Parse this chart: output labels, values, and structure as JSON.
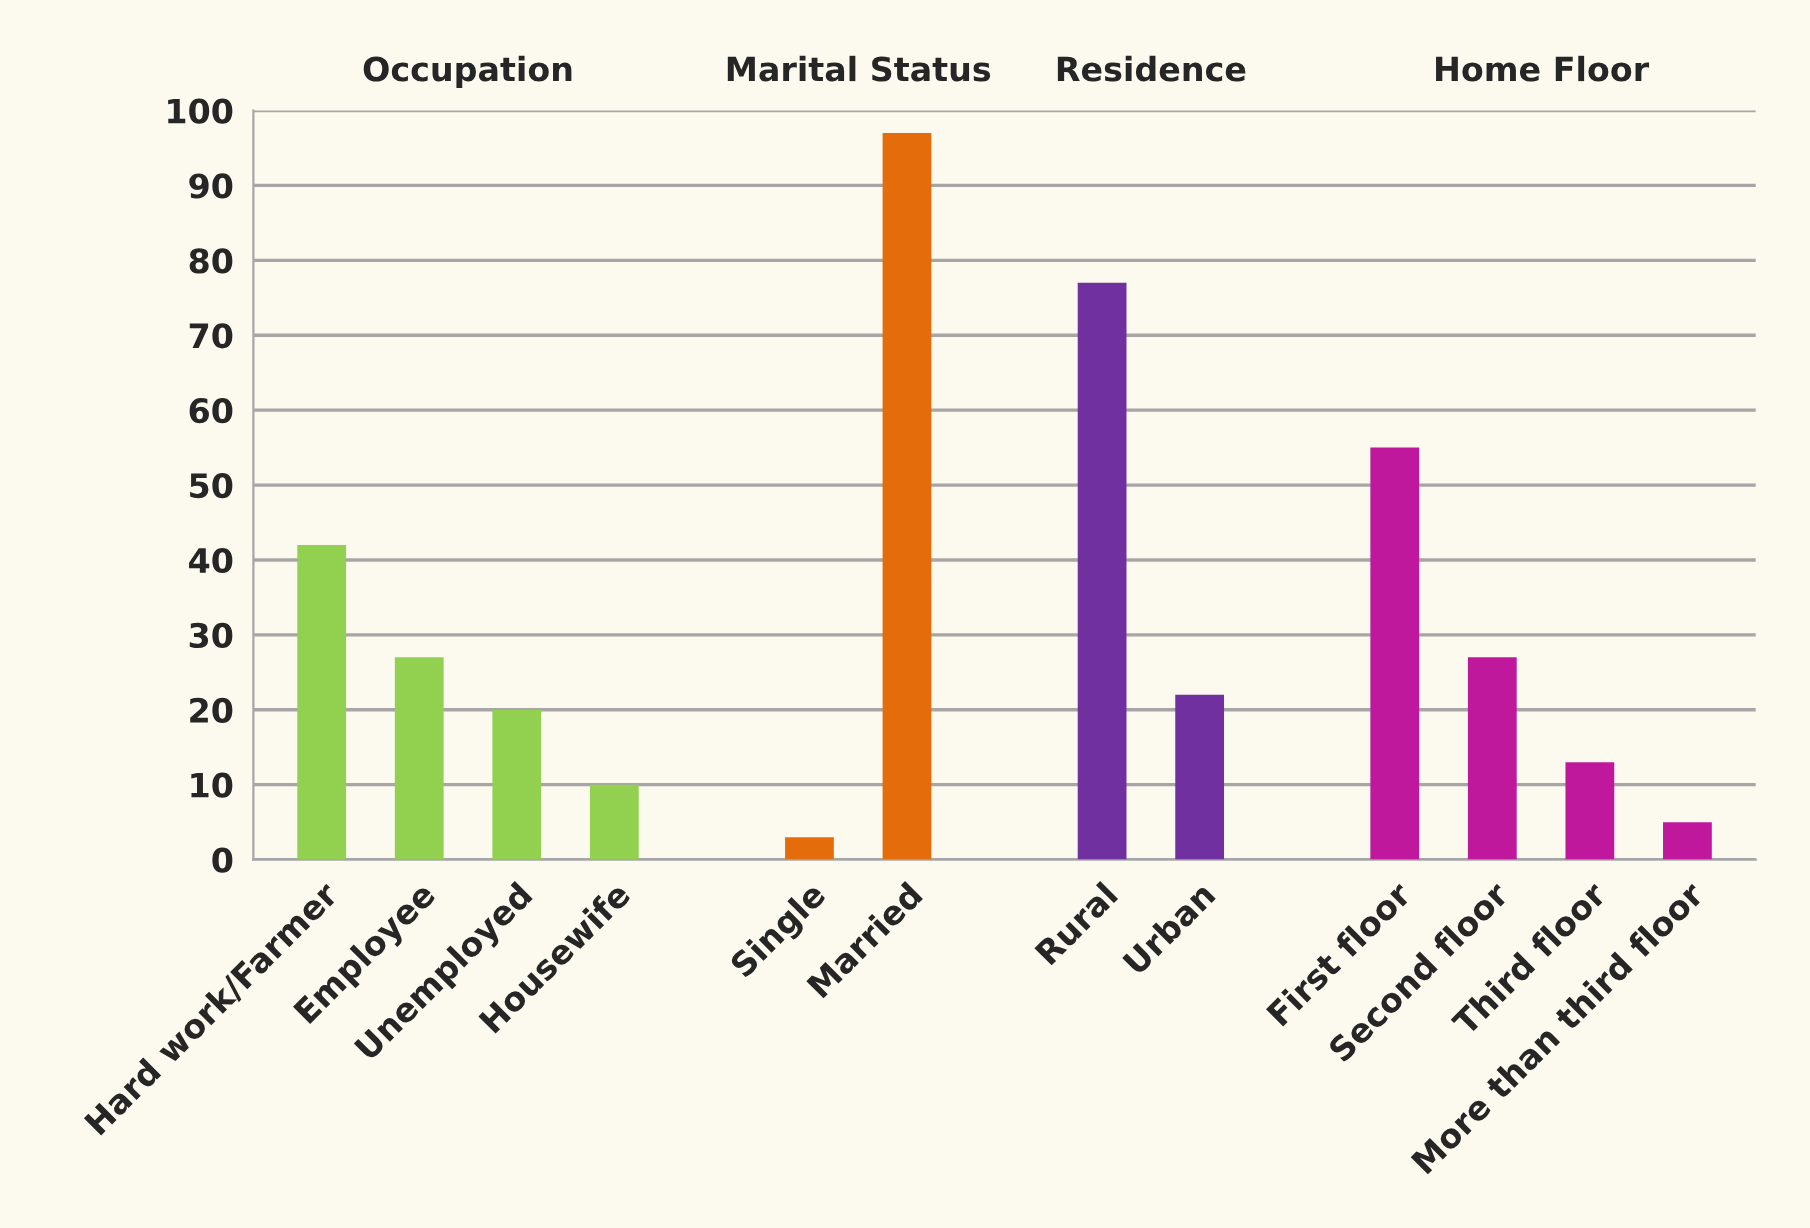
{
  "chart_data": {
    "type": "bar",
    "categories": [
      "Hard work/Farmer",
      "Employee",
      "Unemployed",
      "Housewife",
      null,
      "Single",
      "Married",
      null,
      "Rural",
      "Urban",
      null,
      "First floor",
      "Second floor",
      "Third floor",
      "More than third floor"
    ],
    "values": [
      42,
      27,
      20,
      10,
      null,
      3,
      97,
      null,
      77,
      22,
      null,
      55,
      27,
      13,
      5
    ],
    "colors": [
      "#92d050",
      "#92d050",
      "#92d050",
      "#92d050",
      "#92d050",
      "#e46c0a",
      "#e46c0a",
      "#7030a0",
      "#7030a0",
      "#7030a0",
      "#c0189c",
      "#c0189c",
      "#c0189c",
      "#c0189c",
      "#c0189c"
    ],
    "annotations": [
      "Occupation",
      "Marital Status",
      "Residence",
      "Home Floor"
    ],
    "ylim": [
      0,
      100
    ],
    "yticks": [
      0,
      10,
      20,
      30,
      40,
      50,
      60,
      70,
      80,
      90,
      100
    ],
    "grid": "y"
  }
}
